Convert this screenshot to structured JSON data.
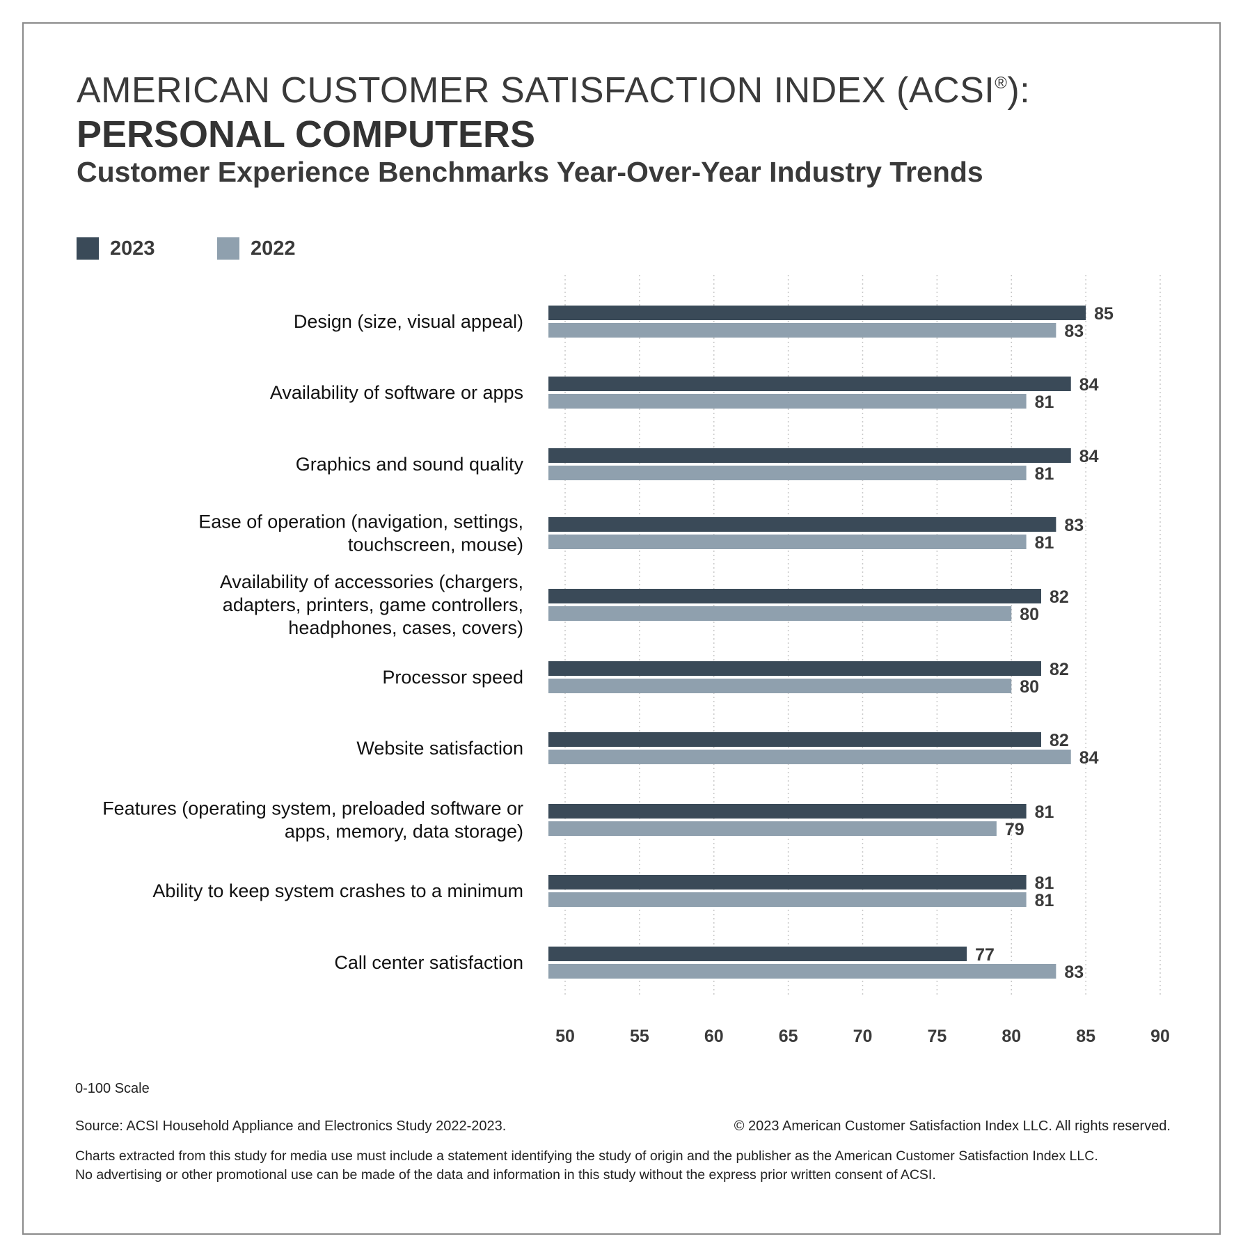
{
  "header": {
    "title_line1": "AMERICAN CUSTOMER SATISFACTION INDEX (ACSI",
    "title_reg": "®",
    "title_line1_end": "):",
    "title_line2": "PERSONAL COMPUTERS",
    "subtitle": "Customer Experience Benchmarks Year-Over-Year Industry Trends"
  },
  "legend": [
    {
      "label": "2023",
      "color": "#3a4a58"
    },
    {
      "label": "2022",
      "color": "#8fa0ae"
    }
  ],
  "chart_data": {
    "type": "bar",
    "orientation": "horizontal",
    "categories": [
      [
        "Design (size, visual appeal)"
      ],
      [
        "Availability of software or apps"
      ],
      [
        "Graphics and sound quality"
      ],
      [
        "Ease of operation (navigation, settings,",
        "touchscreen, mouse)"
      ],
      [
        "Availability of accessories (chargers,",
        "adapters, printers, game controllers,",
        "headphones, cases, covers)"
      ],
      [
        "Processor speed"
      ],
      [
        "Website satisfaction"
      ],
      [
        "Features (operating system, preloaded software or",
        "apps, memory, data storage)"
      ],
      [
        "Ability to keep system crashes to a minimum"
      ],
      [
        "Call center satisfaction"
      ]
    ],
    "series": [
      {
        "name": "2023",
        "color": "#3a4a58",
        "values": [
          85,
          84,
          84,
          83,
          82,
          82,
          82,
          81,
          81,
          77
        ]
      },
      {
        "name": "2022",
        "color": "#8fa0ae",
        "values": [
          83,
          81,
          81,
          81,
          80,
          80,
          84,
          79,
          81,
          83
        ]
      }
    ],
    "xlim": [
      50,
      90
    ],
    "xticks": [
      50,
      55,
      60,
      65,
      70,
      75,
      80,
      85,
      90
    ],
    "grid": "vertical dotted",
    "legend_position": "top-left"
  },
  "footer": {
    "scale_note": "0-100 Scale",
    "source": "Source: ACSI Household Appliance and Electronics Study 2022-2023.",
    "copyright": "© 2023 American Customer Satisfaction Index LLC. All rights reserved.",
    "disclaimer_line1": "Charts extracted from this study for media use must include a statement identifying the study of origin and the publisher as the American Customer Satisfaction Index LLC.",
    "disclaimer_line2": "No advertising or other promotional use can be made of the data and information in this study without the express prior written consent of ACSI."
  }
}
